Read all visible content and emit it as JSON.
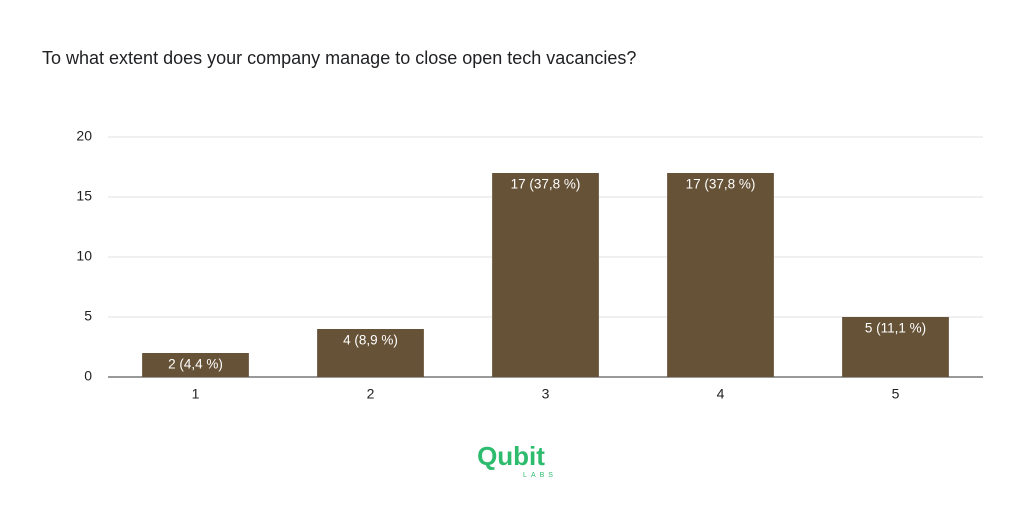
{
  "chart_data": {
    "type": "bar",
    "title": "To what extent does your company manage to close open tech vacancies?",
    "categories": [
      "1",
      "2",
      "3",
      "4",
      "5"
    ],
    "values": [
      2,
      4,
      17,
      17,
      5
    ],
    "value_labels": [
      "2 (4,4 %)",
      "4 (8,9 %)",
      "17 (37,8 %)",
      "17 (37,8 %)",
      "5 (11,1 %)"
    ],
    "color": "#665236",
    "ylim": [
      0,
      20
    ],
    "yticks": [
      0,
      5,
      10,
      15,
      20
    ],
    "grid": true
  },
  "logo": {
    "name": "Qubit",
    "sub": "LABS"
  }
}
